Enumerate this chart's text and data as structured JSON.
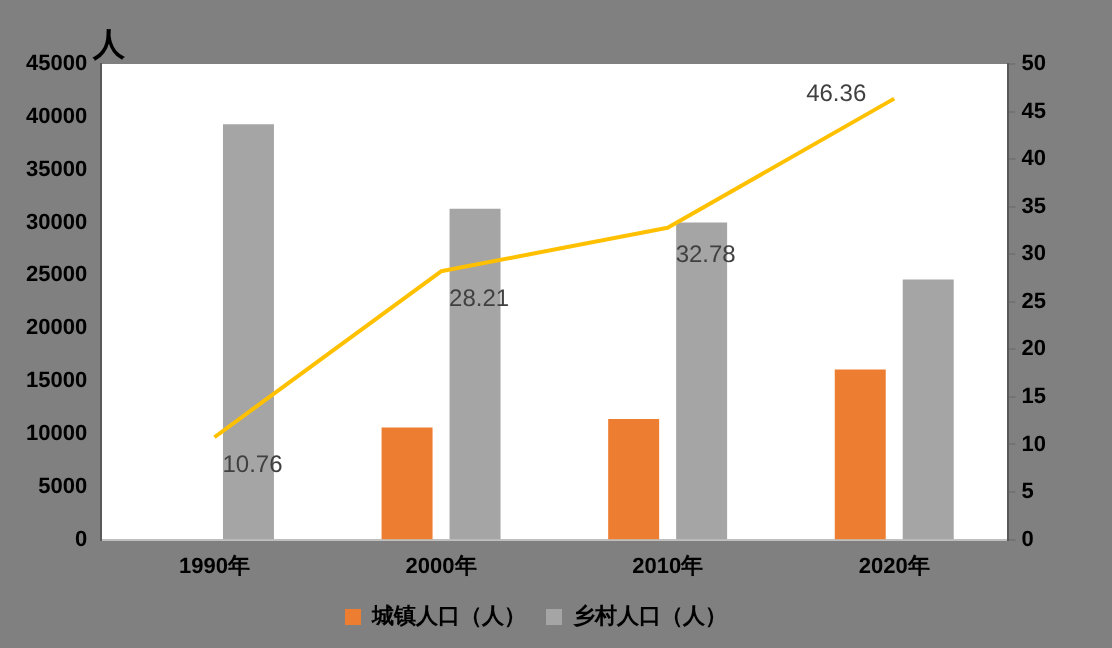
{
  "chart_data": {
    "type": "bar",
    "ylabel": "人",
    "categories": [
      "1990年",
      "2000年",
      "2010年",
      "2020年"
    ],
    "series": [
      {
        "name": "城镇人口（人）",
        "color": "#ed7d31",
        "values": [
          null,
          10600,
          11400,
          16100
        ]
      },
      {
        "name": "乡村人口（人）",
        "color": "#a5a5a5",
        "values": [
          39300,
          31300,
          30000,
          24600
        ]
      },
      {
        "type": "line",
        "axis": "y2",
        "color": "#ffc000",
        "values": [
          10.76,
          28.21,
          32.78,
          46.36
        ],
        "value_labels": [
          "10.76",
          "28.21",
          "32.78",
          "46.36"
        ]
      }
    ],
    "ylim": [
      0,
      45000
    ],
    "yticks": [
      0,
      5000,
      10000,
      15000,
      20000,
      25000,
      30000,
      35000,
      40000,
      45000
    ],
    "y2lim": [
      0,
      50
    ],
    "y2ticks": [
      0,
      5,
      10,
      15,
      20,
      25,
      30,
      35,
      40,
      45,
      50
    ],
    "grid": false,
    "legend": "bottom",
    "marker": "none"
  }
}
